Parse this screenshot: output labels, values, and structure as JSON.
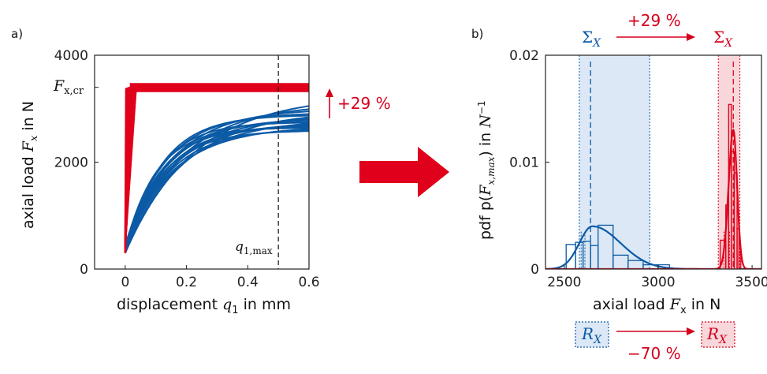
{
  "colors": {
    "blue": "#0b5aa5",
    "red": "#e0001b",
    "blue_fill": "#dce8f5",
    "red_fill": "#f8d7db"
  },
  "panel_a": {
    "label": "a)",
    "xlabel_text": "displacement ",
    "xlabel_sym": "q",
    "xlabel_sub": "1",
    "xlabel_unit": " in mm",
    "ylabel_text": "axial load ",
    "ylabel_sym": "F",
    "ylabel_sub": "x",
    "ylabel_unit": " in N",
    "fcr_sym": "F",
    "fcr_sub": "x,cr",
    "qmax_sym": "q",
    "qmax_sub": "1,max",
    "increase_label": "+29 %"
  },
  "panel_b": {
    "label": "b)",
    "xlabel_text": "axial load ",
    "xlabel_sym": "F",
    "xlabel_sub": "x",
    "xlabel_unit": " in N",
    "ylabel_text": "pdf p(",
    "ylabel_sym": "F",
    "ylabel_sub": "x,max",
    "ylabel_tail": ") in ",
    "ylabel_unit_sym": "N",
    "ylabel_unit_sup": "−1",
    "sigma_sym": "Σ",
    "sigma_sub": "X",
    "r_sym": "R",
    "r_sub": "X",
    "top_change": "+29 %",
    "bottom_change": "−70 %"
  },
  "chart_data": [
    {
      "type": "line",
      "xlim": [
        -0.1,
        0.6
      ],
      "ylim": [
        0,
        4000
      ],
      "xticks": [
        "0",
        "0.2",
        "0.4",
        "0.6"
      ],
      "yticks": [
        "0",
        "2000",
        "4000"
      ],
      "xtick_values": [
        0,
        0.2,
        0.4,
        0.6
      ],
      "ytick_values": [
        0,
        2000,
        4000
      ],
      "vline_x": 0.5,
      "grid": false,
      "series": [
        {
          "color": "red",
          "plateau": 3400,
          "peak_x": 0.01,
          "count": 1
        },
        {
          "color": "blue",
          "end_values_at_0_6": [
            3050,
            2990,
            2950,
            2900,
            2870,
            2840,
            2810,
            2790,
            2760,
            2740,
            2720,
            2700,
            2680,
            2660,
            2640,
            2620,
            2600,
            2580
          ],
          "start_y": 300,
          "count": 18
        }
      ]
    },
    {
      "type": "bar",
      "xlim": [
        2400,
        3550
      ],
      "ylim": [
        0,
        0.02
      ],
      "xticks": [
        "2500",
        "3000",
        "3500"
      ],
      "yticks": [
        "0",
        "0.01",
        "0.02"
      ],
      "xtick_values": [
        2500,
        3000,
        3500
      ],
      "ytick_values": [
        0,
        0.01,
        0.02
      ],
      "grid": false,
      "series": [
        {
          "color": "blue",
          "bins": [
            [
              2510,
              2560,
              0.0023
            ],
            [
              2560,
              2600,
              0.0025
            ],
            [
              2600,
              2640,
              0.0026
            ],
            [
              2640,
              2680,
              0.0022
            ],
            [
              2680,
              2760,
              0.0041
            ],
            [
              2760,
              2840,
              0.0013
            ],
            [
              2840,
              2920,
              0.0008
            ],
            [
              2920,
              3000,
              0.0004
            ],
            [
              3000,
              3060,
              0.0004
            ]
          ],
          "pdf_mode": 2650,
          "pdf_peak": 0.004,
          "mean": 2640,
          "band": [
            2580,
            2955
          ],
          "band_inner": [
            2590,
            2610
          ]
        },
        {
          "color": "red",
          "bins": [
            [
              3330,
              3360,
              0.0027
            ],
            [
              3360,
              3375,
              0.006
            ],
            [
              3375,
              3390,
              0.0154
            ],
            [
              3390,
              3405,
              0.011
            ],
            [
              3405,
              3420,
              0.009
            ],
            [
              3420,
              3430,
              0.0038
            ],
            [
              3430,
              3440,
              0.0015
            ]
          ],
          "pdf_mode": 3400,
          "pdf_peak": 0.013,
          "mean": 3400,
          "band": [
            3320,
            3435
          ],
          "band_inner": [
            3350,
            3380
          ]
        }
      ]
    }
  ]
}
